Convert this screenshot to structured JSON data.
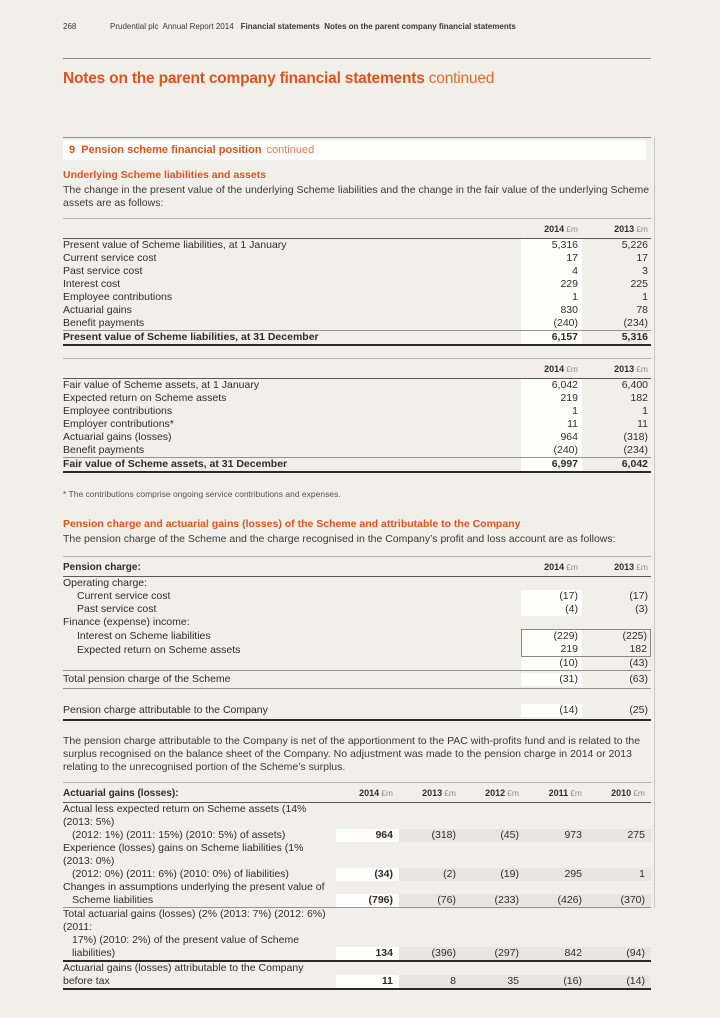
{
  "page": {
    "number": "268",
    "meta_regular": "Prudential plc  Annual Report 2014",
    "meta_bold": "Financial statements  Notes on the parent company financial statements",
    "title": "Notes on the parent company financial statements",
    "title_suffix": "continued"
  },
  "section": {
    "title": "9  Pension scheme financial position",
    "suffix": "continued"
  },
  "underlying": {
    "heading": "Underlying Scheme liabilities and assets",
    "intro": "The change in the present value of the underlying Scheme liabilities and the change in the fair value of the underlying Scheme assets are as follows:"
  },
  "footnote": {
    "marker": "*",
    "text": "The contributions comprise ongoing service contributions and expenses."
  },
  "charge": {
    "heading": "Pension charge and actuarial gains (losses) of the Scheme and attributable to the Company",
    "intro": "The pension charge of the Scheme and the charge recognised in the Company’s profit and loss account are as follows:",
    "note": "The pension charge attributable to the Company is net of the apportionment to the PAC with-profits fund and is related to the surplus recognised on the balance sheet of the Company. No adjustment was made to the pension charge in 2014 or 2013 relating to the unrecognised portion of the Scheme’s surplus."
  },
  "colors": {
    "accent": "#e4511c",
    "page_bg": "#f0efe9",
    "highlight_column": "#fdfdfc",
    "grey_column": "#e6e5df"
  },
  "tables": {
    "liabilities": {
      "header": {
        "label": "",
        "cols": [
          {
            "year": "2014",
            "unit": "£m"
          },
          {
            "year": "2013",
            "unit": "£m"
          }
        ]
      },
      "rows": [
        {
          "label": "Present value of Scheme liabilities, at 1 January",
          "values": [
            "5,316",
            "5,226"
          ]
        },
        {
          "label": "Current service cost",
          "values": [
            "17",
            "17"
          ]
        },
        {
          "label": "Past service cost",
          "values": [
            "4",
            "3"
          ]
        },
        {
          "label": "Interest cost",
          "values": [
            "229",
            "225"
          ]
        },
        {
          "label": "Employee contributions",
          "values": [
            "1",
            "1"
          ]
        },
        {
          "label": "Actuarial gains",
          "values": [
            "830",
            "78"
          ]
        },
        {
          "label": "Benefit payments",
          "values": [
            "(240)",
            "(234)"
          ]
        },
        {
          "label": "Present value of Scheme liabilities, at 31 December",
          "values": [
            "6,157",
            "5,316"
          ],
          "kind": "total",
          "rule_before": "thin",
          "rule_after": "thick"
        }
      ]
    },
    "assets": {
      "header": {
        "label": "",
        "cols": [
          {
            "year": "2014",
            "unit": "£m"
          },
          {
            "year": "2013",
            "unit": "£m"
          }
        ]
      },
      "rows": [
        {
          "label": "Fair value of Scheme assets, at 1 January",
          "values": [
            "6,042",
            "6,400"
          ]
        },
        {
          "label": "Expected return on Scheme assets",
          "values": [
            "219",
            "182"
          ]
        },
        {
          "label": "Employee contributions",
          "values": [
            "1",
            "1"
          ]
        },
        {
          "label": "Employer contributions*",
          "values": [
            "11",
            "11"
          ]
        },
        {
          "label": "Actuarial gains (losses)",
          "values": [
            "964",
            "(318)"
          ]
        },
        {
          "label": "Benefit payments",
          "values": [
            "(240)",
            "(234)"
          ]
        },
        {
          "label": "Fair value of Scheme assets, at 31 December",
          "values": [
            "6,997",
            "6,042"
          ],
          "kind": "total",
          "rule_before": "thin",
          "rule_after": "thick"
        }
      ]
    },
    "pension_charge": {
      "header": {
        "label": "Pension charge:",
        "cols": [
          {
            "year": "2014",
            "unit": "£m"
          },
          {
            "year": "2013",
            "unit": "£m"
          }
        ]
      },
      "rows": [
        {
          "label": "Operating charge:",
          "kind": "group"
        },
        {
          "label": "Current service cost",
          "indent": true,
          "values": [
            "(17)",
            "(17)"
          ]
        },
        {
          "label": "Past service cost",
          "indent": true,
          "values": [
            "(4)",
            "(3)"
          ]
        },
        {
          "label": "Finance (expense) income:",
          "kind": "group"
        },
        {
          "label": "Interest on Scheme liabilities",
          "indent": true,
          "values": [
            "(229)",
            "(225)"
          ],
          "box": "top"
        },
        {
          "label": "Expected return on Scheme assets",
          "indent": true,
          "values": [
            "219",
            "182"
          ],
          "box": "bottom"
        },
        {
          "label": "",
          "values": [
            "(10)",
            "(43)"
          ],
          "rule_after": "thin"
        },
        {
          "label": "Total pension charge of the Scheme",
          "values": [
            "(31)",
            "(63)"
          ],
          "kind": "spaced",
          "rule_after": "thin"
        },
        {
          "kind": "gap"
        },
        {
          "label": "Pension charge attributable to the Company",
          "values": [
            "(14)",
            "(25)"
          ],
          "kind": "spaced",
          "rule_after": "thick"
        }
      ]
    },
    "actuarial": {
      "header": {
        "label": "Actuarial gains (losses):",
        "cols": [
          {
            "year": "2014",
            "unit": "£m"
          },
          {
            "year": "2013",
            "unit": "£m"
          },
          {
            "year": "2012",
            "unit": "£m"
          },
          {
            "year": "2011",
            "unit": "£m"
          },
          {
            "year": "2010",
            "unit": "£m"
          }
        ]
      },
      "rows": [
        {
          "label": "Actual less expected return on Scheme assets (14% (2013: 5%)",
          "label2": "(2012: 1%) (2011: 15%) (2010: 5%) of assets)",
          "values": [
            "964",
            "(318)",
            "(45)",
            "973",
            "275"
          ]
        },
        {
          "label": "Experience (losses) gains on Scheme liabilities (1% (2013: 0%)",
          "label2": "(2012: 0%) (2011: 6%) (2010: 0%) of liabilities)",
          "values": [
            "(34)",
            "(2)",
            "(19)",
            "295",
            "1"
          ]
        },
        {
          "label": "Changes in assumptions underlying the present value of",
          "label2": "Scheme liabilities",
          "values": [
            "(796)",
            "(76)",
            "(233)",
            "(426)",
            "(370)"
          ],
          "rule_after": "thin"
        },
        {
          "label": "Total actuarial gains (losses) (2% (2013: 7%) (2012: 6%) (2011:",
          "label2": "17%) (2010: 2%) of the present value of Scheme liabilities)",
          "values": [
            "134",
            "(396)",
            "(297)",
            "842",
            "(94)"
          ],
          "rule_after": "thick"
        },
        {
          "label": "Actuarial gains (losses) attributable to the Company before tax",
          "values": [
            "11",
            "8",
            "35",
            "(16)",
            "(14)"
          ],
          "rule_after": "thick"
        }
      ]
    }
  }
}
